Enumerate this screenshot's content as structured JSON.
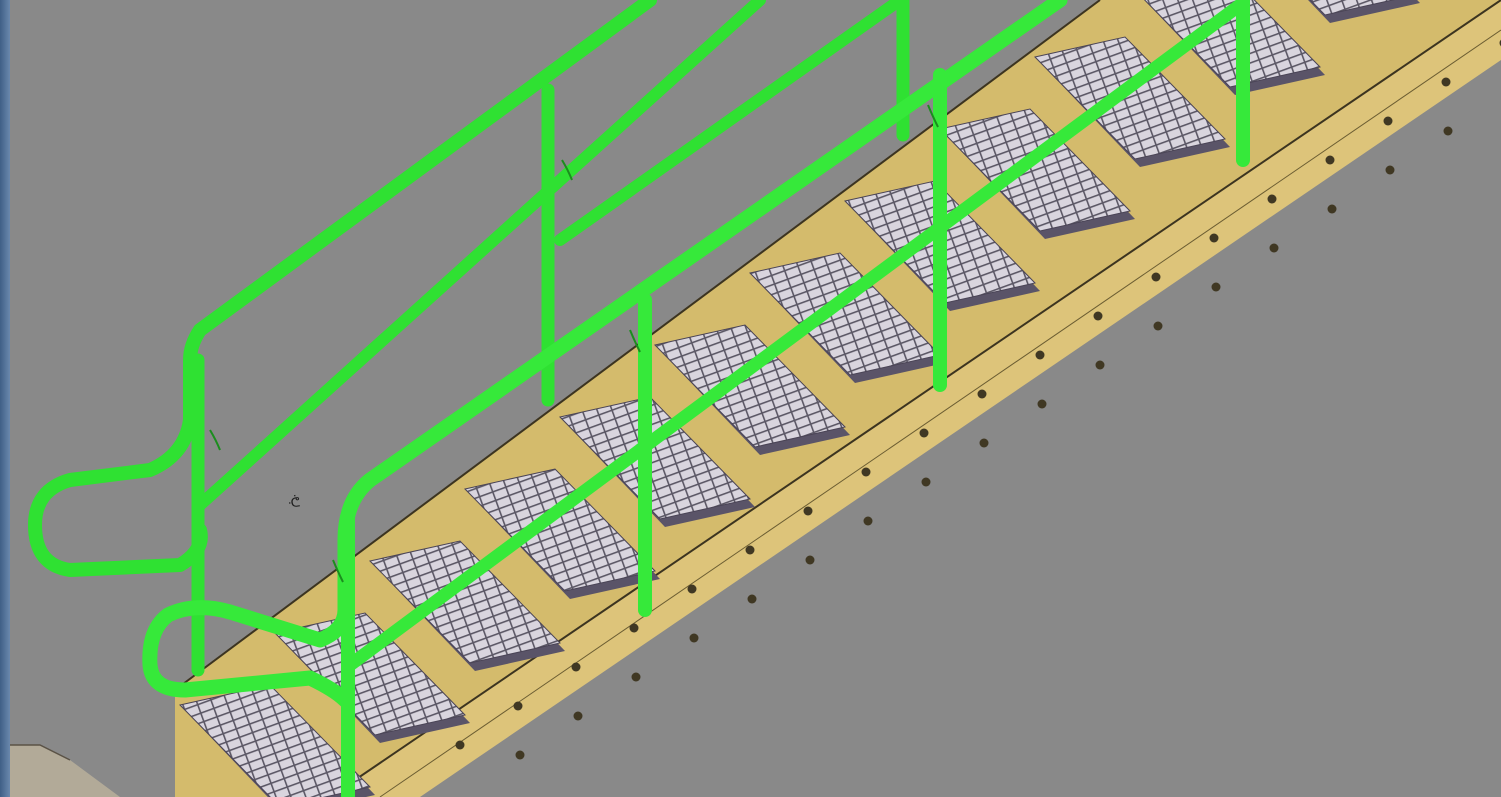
{
  "view": {
    "background_color": "#898989",
    "stringer_color": "#d6bd6f",
    "rail_color": "#36e53a",
    "tread_color": "#c9c3cf"
  },
  "scene": {
    "objects": [
      "staircase",
      "stringer",
      "grating-treads",
      "handrail-left",
      "handrail-right"
    ]
  },
  "cursor": {
    "label": "ᕨ"
  }
}
